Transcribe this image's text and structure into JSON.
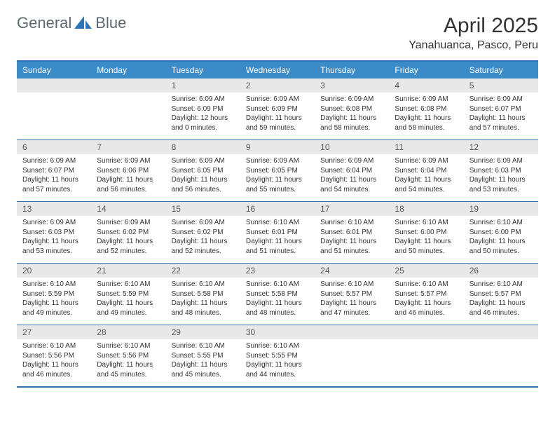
{
  "brand": {
    "part1": "General",
    "part2": "Blue"
  },
  "colors": {
    "accent": "#3b8bc9",
    "border": "#2d73b5",
    "daynum_bg": "#e8e8e8",
    "text": "#333333",
    "logo_text": "#5a6670",
    "logo_shape": "#2d73b5"
  },
  "title": "April 2025",
  "location": "Yanahuanca, Pasco, Peru",
  "day_labels": [
    "Sunday",
    "Monday",
    "Tuesday",
    "Wednesday",
    "Thursday",
    "Friday",
    "Saturday"
  ],
  "weeks": [
    [
      null,
      null,
      {
        "num": "1",
        "sunrise": "Sunrise: 6:09 AM",
        "sunset": "Sunset: 6:09 PM",
        "daylight": "Daylight: 12 hours and 0 minutes."
      },
      {
        "num": "2",
        "sunrise": "Sunrise: 6:09 AM",
        "sunset": "Sunset: 6:09 PM",
        "daylight": "Daylight: 11 hours and 59 minutes."
      },
      {
        "num": "3",
        "sunrise": "Sunrise: 6:09 AM",
        "sunset": "Sunset: 6:08 PM",
        "daylight": "Daylight: 11 hours and 58 minutes."
      },
      {
        "num": "4",
        "sunrise": "Sunrise: 6:09 AM",
        "sunset": "Sunset: 6:08 PM",
        "daylight": "Daylight: 11 hours and 58 minutes."
      },
      {
        "num": "5",
        "sunrise": "Sunrise: 6:09 AM",
        "sunset": "Sunset: 6:07 PM",
        "daylight": "Daylight: 11 hours and 57 minutes."
      }
    ],
    [
      {
        "num": "6",
        "sunrise": "Sunrise: 6:09 AM",
        "sunset": "Sunset: 6:07 PM",
        "daylight": "Daylight: 11 hours and 57 minutes."
      },
      {
        "num": "7",
        "sunrise": "Sunrise: 6:09 AM",
        "sunset": "Sunset: 6:06 PM",
        "daylight": "Daylight: 11 hours and 56 minutes."
      },
      {
        "num": "8",
        "sunrise": "Sunrise: 6:09 AM",
        "sunset": "Sunset: 6:05 PM",
        "daylight": "Daylight: 11 hours and 56 minutes."
      },
      {
        "num": "9",
        "sunrise": "Sunrise: 6:09 AM",
        "sunset": "Sunset: 6:05 PM",
        "daylight": "Daylight: 11 hours and 55 minutes."
      },
      {
        "num": "10",
        "sunrise": "Sunrise: 6:09 AM",
        "sunset": "Sunset: 6:04 PM",
        "daylight": "Daylight: 11 hours and 54 minutes."
      },
      {
        "num": "11",
        "sunrise": "Sunrise: 6:09 AM",
        "sunset": "Sunset: 6:04 PM",
        "daylight": "Daylight: 11 hours and 54 minutes."
      },
      {
        "num": "12",
        "sunrise": "Sunrise: 6:09 AM",
        "sunset": "Sunset: 6:03 PM",
        "daylight": "Daylight: 11 hours and 53 minutes."
      }
    ],
    [
      {
        "num": "13",
        "sunrise": "Sunrise: 6:09 AM",
        "sunset": "Sunset: 6:03 PM",
        "daylight": "Daylight: 11 hours and 53 minutes."
      },
      {
        "num": "14",
        "sunrise": "Sunrise: 6:09 AM",
        "sunset": "Sunset: 6:02 PM",
        "daylight": "Daylight: 11 hours and 52 minutes."
      },
      {
        "num": "15",
        "sunrise": "Sunrise: 6:09 AM",
        "sunset": "Sunset: 6:02 PM",
        "daylight": "Daylight: 11 hours and 52 minutes."
      },
      {
        "num": "16",
        "sunrise": "Sunrise: 6:10 AM",
        "sunset": "Sunset: 6:01 PM",
        "daylight": "Daylight: 11 hours and 51 minutes."
      },
      {
        "num": "17",
        "sunrise": "Sunrise: 6:10 AM",
        "sunset": "Sunset: 6:01 PM",
        "daylight": "Daylight: 11 hours and 51 minutes."
      },
      {
        "num": "18",
        "sunrise": "Sunrise: 6:10 AM",
        "sunset": "Sunset: 6:00 PM",
        "daylight": "Daylight: 11 hours and 50 minutes."
      },
      {
        "num": "19",
        "sunrise": "Sunrise: 6:10 AM",
        "sunset": "Sunset: 6:00 PM",
        "daylight": "Daylight: 11 hours and 50 minutes."
      }
    ],
    [
      {
        "num": "20",
        "sunrise": "Sunrise: 6:10 AM",
        "sunset": "Sunset: 5:59 PM",
        "daylight": "Daylight: 11 hours and 49 minutes."
      },
      {
        "num": "21",
        "sunrise": "Sunrise: 6:10 AM",
        "sunset": "Sunset: 5:59 PM",
        "daylight": "Daylight: 11 hours and 49 minutes."
      },
      {
        "num": "22",
        "sunrise": "Sunrise: 6:10 AM",
        "sunset": "Sunset: 5:58 PM",
        "daylight": "Daylight: 11 hours and 48 minutes."
      },
      {
        "num": "23",
        "sunrise": "Sunrise: 6:10 AM",
        "sunset": "Sunset: 5:58 PM",
        "daylight": "Daylight: 11 hours and 48 minutes."
      },
      {
        "num": "24",
        "sunrise": "Sunrise: 6:10 AM",
        "sunset": "Sunset: 5:57 PM",
        "daylight": "Daylight: 11 hours and 47 minutes."
      },
      {
        "num": "25",
        "sunrise": "Sunrise: 6:10 AM",
        "sunset": "Sunset: 5:57 PM",
        "daylight": "Daylight: 11 hours and 46 minutes."
      },
      {
        "num": "26",
        "sunrise": "Sunrise: 6:10 AM",
        "sunset": "Sunset: 5:57 PM",
        "daylight": "Daylight: 11 hours and 46 minutes."
      }
    ],
    [
      {
        "num": "27",
        "sunrise": "Sunrise: 6:10 AM",
        "sunset": "Sunset: 5:56 PM",
        "daylight": "Daylight: 11 hours and 46 minutes."
      },
      {
        "num": "28",
        "sunrise": "Sunrise: 6:10 AM",
        "sunset": "Sunset: 5:56 PM",
        "daylight": "Daylight: 11 hours and 45 minutes."
      },
      {
        "num": "29",
        "sunrise": "Sunrise: 6:10 AM",
        "sunset": "Sunset: 5:55 PM",
        "daylight": "Daylight: 11 hours and 45 minutes."
      },
      {
        "num": "30",
        "sunrise": "Sunrise: 6:10 AM",
        "sunset": "Sunset: 5:55 PM",
        "daylight": "Daylight: 11 hours and 44 minutes."
      },
      null,
      null,
      null
    ]
  ]
}
